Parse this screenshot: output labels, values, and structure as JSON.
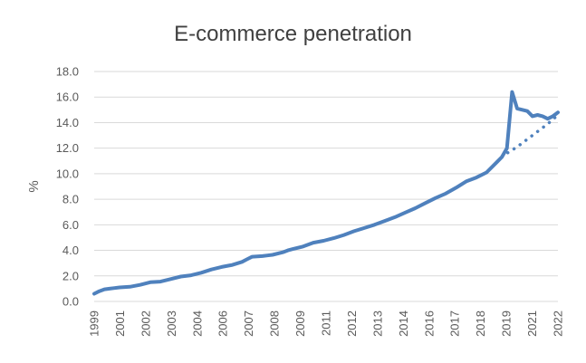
{
  "chart_data": {
    "type": "line",
    "title": "E-commerce penetration",
    "xlabel": "",
    "ylabel": "%",
    "ylim": [
      0,
      18
    ],
    "yticks": [
      "0.0",
      "2.0",
      "4.0",
      "6.0",
      "8.0",
      "10.0",
      "12.0",
      "14.0",
      "16.0",
      "18.0"
    ],
    "xticks": [
      "1999",
      "2001",
      "2002",
      "2003",
      "2004",
      "2006",
      "2007",
      "2008",
      "2009",
      "2011",
      "2012",
      "2013",
      "2014",
      "2016",
      "2017",
      "2018",
      "2019",
      "2021",
      "2022"
    ],
    "xrange": [
      1999.75,
      2022.5
    ],
    "grid": "horizontal",
    "legend": "none",
    "series_color": "#4f81bd",
    "series": [
      {
        "style": "solid",
        "x": [
          1999.75,
          2000.0,
          2000.25,
          2000.5,
          2000.75,
          2001.0,
          2001.5,
          2002.0,
          2002.5,
          2003.0,
          2003.5,
          2004.0,
          2004.5,
          2005.0,
          2005.5,
          2006.0,
          2006.5,
          2007.0,
          2007.25,
          2007.5,
          2008.0,
          2008.25,
          2008.5,
          2009.0,
          2009.25,
          2009.5,
          2010.0,
          2010.5,
          2011.0,
          2011.5,
          2012.0,
          2012.5,
          2013.0,
          2013.5,
          2014.0,
          2014.5,
          2015.0,
          2015.5,
          2016.0,
          2016.5,
          2017.0,
          2017.5,
          2018.0,
          2018.5,
          2019.0,
          2019.5,
          2019.75,
          2020.0,
          2020.25,
          2020.5,
          2020.75,
          2021.0,
          2021.25,
          2021.5,
          2021.75,
          2022.0,
          2022.25,
          2022.5
        ],
        "y": [
          0.6,
          0.8,
          0.95,
          1.0,
          1.05,
          1.1,
          1.15,
          1.3,
          1.5,
          1.55,
          1.75,
          1.95,
          2.05,
          2.25,
          2.5,
          2.7,
          2.85,
          3.1,
          3.3,
          3.5,
          3.55,
          3.6,
          3.65,
          3.85,
          4.0,
          4.1,
          4.3,
          4.6,
          4.75,
          4.95,
          5.2,
          5.5,
          5.75,
          6.0,
          6.3,
          6.6,
          6.95,
          7.3,
          7.7,
          8.1,
          8.45,
          8.9,
          9.4,
          9.7,
          10.1,
          10.9,
          11.3,
          12.0,
          16.4,
          15.1,
          15.0,
          14.9,
          14.5,
          14.6,
          14.5,
          14.3,
          14.5,
          14.8
        ]
      },
      {
        "style": "dotted",
        "x": [
          2019.75,
          2020.0,
          2020.5,
          2021.0,
          2021.5,
          2022.0,
          2022.5
        ],
        "y": [
          11.3,
          11.6,
          12.1,
          12.7,
          13.3,
          13.9,
          14.6
        ]
      }
    ]
  }
}
